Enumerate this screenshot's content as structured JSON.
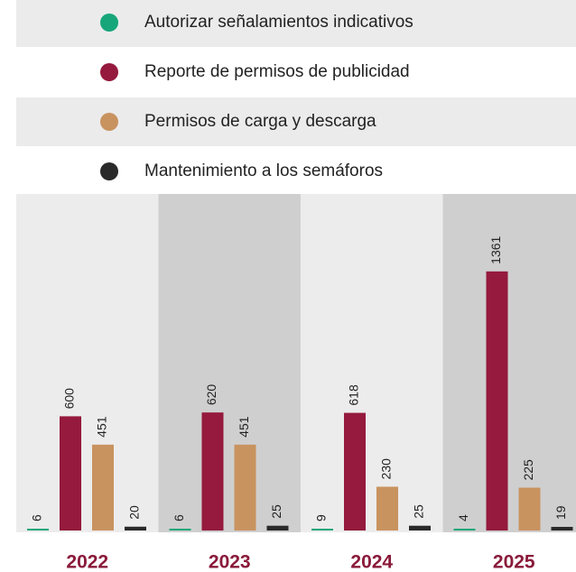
{
  "chart_data": {
    "type": "bar",
    "categories": [
      "2022",
      "2023",
      "2024",
      "2025"
    ],
    "series": [
      {
        "name": "Autorizar señalamientos indicativos",
        "color": "#17a67a",
        "values": [
          6,
          6,
          9,
          4
        ]
      },
      {
        "name": "Reporte de permisos de publicidad",
        "color": "#951a3d",
        "values": [
          600,
          620,
          618,
          1361
        ]
      },
      {
        "name": "Permisos de carga y descarga",
        "color": "#c8935f",
        "values": [
          451,
          451,
          230,
          225
        ]
      },
      {
        "name": "Mantenimiento a los semáforos",
        "color": "#2a2a2a",
        "values": [
          20,
          25,
          25,
          19
        ]
      }
    ]
  }
}
